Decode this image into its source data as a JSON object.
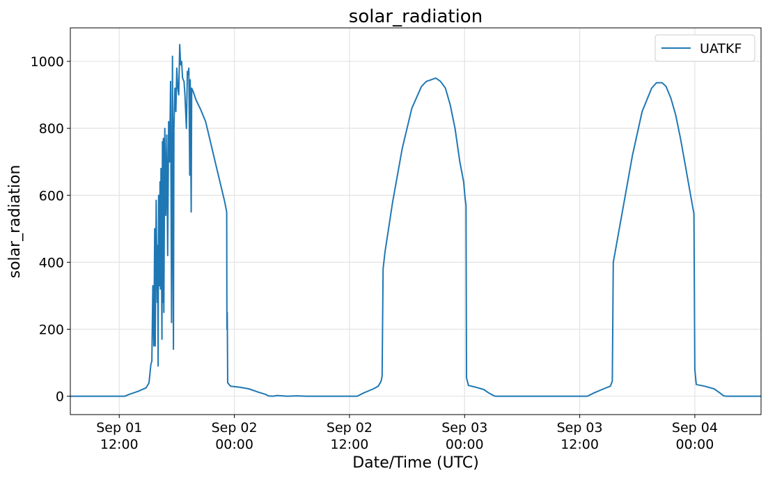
{
  "chart_data": {
    "type": "line",
    "title": "solar_radiation",
    "xlabel": "Date/Time (UTC)",
    "ylabel": "solar_radiation",
    "x_unit": "hours from Sep 01 00:00 UTC",
    "xlim": [
      6.9,
      78.9
    ],
    "ylim": [
      -55,
      1100
    ],
    "yticks": [
      0,
      200,
      400,
      600,
      800,
      1000
    ],
    "xticks": [
      {
        "x": 12,
        "line1": "Sep 01",
        "line2": "12:00"
      },
      {
        "x": 24,
        "line1": "Sep 02",
        "line2": "00:00"
      },
      {
        "x": 36,
        "line1": "Sep 02",
        "line2": "12:00"
      },
      {
        "x": 48,
        "line1": "Sep 03",
        "line2": "00:00"
      },
      {
        "x": 60,
        "line1": "Sep 03",
        "line2": "12:00"
      },
      {
        "x": 72,
        "line1": "Sep 04",
        "line2": "00:00"
      }
    ],
    "grid": true,
    "legend_position": "top-right",
    "series": [
      {
        "name": "UATKF",
        "color": "#1f77b4",
        "points": [
          [
            6.9,
            0
          ],
          [
            12.6,
            0
          ],
          [
            13.0,
            5
          ],
          [
            14.0,
            15
          ],
          [
            14.8,
            25
          ],
          [
            15.1,
            40
          ],
          [
            15.3,
            95
          ],
          [
            15.4,
            105
          ],
          [
            15.5,
            330
          ],
          [
            15.6,
            150
          ],
          [
            15.7,
            500
          ],
          [
            15.75,
            150
          ],
          [
            15.85,
            585
          ],
          [
            15.95,
            280
          ],
          [
            16.0,
            450
          ],
          [
            16.05,
            90
          ],
          [
            16.1,
            600
          ],
          [
            16.2,
            330
          ],
          [
            16.25,
            640
          ],
          [
            16.3,
            320
          ],
          [
            16.35,
            680
          ],
          [
            16.45,
            170
          ],
          [
            16.5,
            760
          ],
          [
            16.55,
            280
          ],
          [
            16.6,
            770
          ],
          [
            16.65,
            250
          ],
          [
            16.75,
            800
          ],
          [
            16.85,
            540
          ],
          [
            16.95,
            780
          ],
          [
            17.05,
            420
          ],
          [
            17.15,
            820
          ],
          [
            17.25,
            700
          ],
          [
            17.35,
            940
          ],
          [
            17.45,
            220
          ],
          [
            17.5,
            560
          ],
          [
            17.55,
            1015
          ],
          [
            17.65,
            140
          ],
          [
            17.7,
            800
          ],
          [
            17.8,
            920
          ],
          [
            17.9,
            850
          ],
          [
            18.0,
            980
          ],
          [
            18.1,
            920
          ],
          [
            18.2,
            900
          ],
          [
            18.3,
            1050
          ],
          [
            18.4,
            990
          ],
          [
            18.5,
            1000
          ],
          [
            18.6,
            950
          ],
          [
            18.75,
            940
          ],
          [
            18.85,
            900
          ],
          [
            19.0,
            800
          ],
          [
            19.1,
            970
          ],
          [
            19.2,
            960
          ],
          [
            19.25,
            980
          ],
          [
            19.35,
            660
          ],
          [
            19.4,
            945
          ],
          [
            19.5,
            550
          ],
          [
            19.55,
            920
          ],
          [
            19.7,
            910
          ],
          [
            20.0,
            885
          ],
          [
            20.5,
            855
          ],
          [
            21.0,
            820
          ],
          [
            21.5,
            760
          ],
          [
            22.0,
            700
          ],
          [
            22.5,
            640
          ],
          [
            23.0,
            580
          ],
          [
            23.2,
            550
          ],
          [
            23.22,
            200
          ],
          [
            23.26,
            250
          ],
          [
            23.3,
            40
          ],
          [
            23.6,
            30
          ],
          [
            24.5,
            27
          ],
          [
            25.5,
            22
          ],
          [
            26.5,
            12
          ],
          [
            27.3,
            5
          ],
          [
            27.5,
            1
          ],
          [
            28.0,
            0
          ],
          [
            28.5,
            2
          ],
          [
            29.5,
            0
          ],
          [
            30.5,
            1
          ],
          [
            31.5,
            0
          ],
          [
            36.8,
            0
          ],
          [
            37.5,
            10
          ],
          [
            38.5,
            22
          ],
          [
            39.0,
            30
          ],
          [
            39.3,
            45
          ],
          [
            39.4,
            60
          ],
          [
            39.5,
            380
          ],
          [
            39.7,
            430
          ],
          [
            40.5,
            580
          ],
          [
            41.5,
            740
          ],
          [
            42.5,
            860
          ],
          [
            43.5,
            925
          ],
          [
            44.0,
            940
          ],
          [
            45.0,
            950
          ],
          [
            45.5,
            940
          ],
          [
            46.0,
            920
          ],
          [
            46.5,
            870
          ],
          [
            47.0,
            800
          ],
          [
            47.5,
            700
          ],
          [
            47.9,
            640
          ],
          [
            48.05,
            590
          ],
          [
            48.15,
            570
          ],
          [
            48.2,
            55
          ],
          [
            48.4,
            32
          ],
          [
            49.0,
            28
          ],
          [
            50.0,
            20
          ],
          [
            50.5,
            10
          ],
          [
            51.0,
            2
          ],
          [
            51.2,
            0
          ],
          [
            60.8,
            0
          ],
          [
            61.5,
            10
          ],
          [
            62.5,
            22
          ],
          [
            63.2,
            30
          ],
          [
            63.4,
            45
          ],
          [
            63.5,
            400
          ],
          [
            64.5,
            560
          ],
          [
            65.5,
            720
          ],
          [
            66.5,
            850
          ],
          [
            67.5,
            920
          ],
          [
            68.0,
            936
          ],
          [
            68.6,
            936
          ],
          [
            69.0,
            925
          ],
          [
            69.5,
            890
          ],
          [
            70.0,
            840
          ],
          [
            70.5,
            770
          ],
          [
            71.0,
            690
          ],
          [
            71.5,
            610
          ],
          [
            71.9,
            545
          ],
          [
            72.0,
            80
          ],
          [
            72.15,
            35
          ],
          [
            73.0,
            30
          ],
          [
            74.0,
            22
          ],
          [
            74.6,
            10
          ],
          [
            75.0,
            1
          ],
          [
            75.3,
            0
          ],
          [
            78.9,
            0
          ]
        ]
      }
    ]
  }
}
